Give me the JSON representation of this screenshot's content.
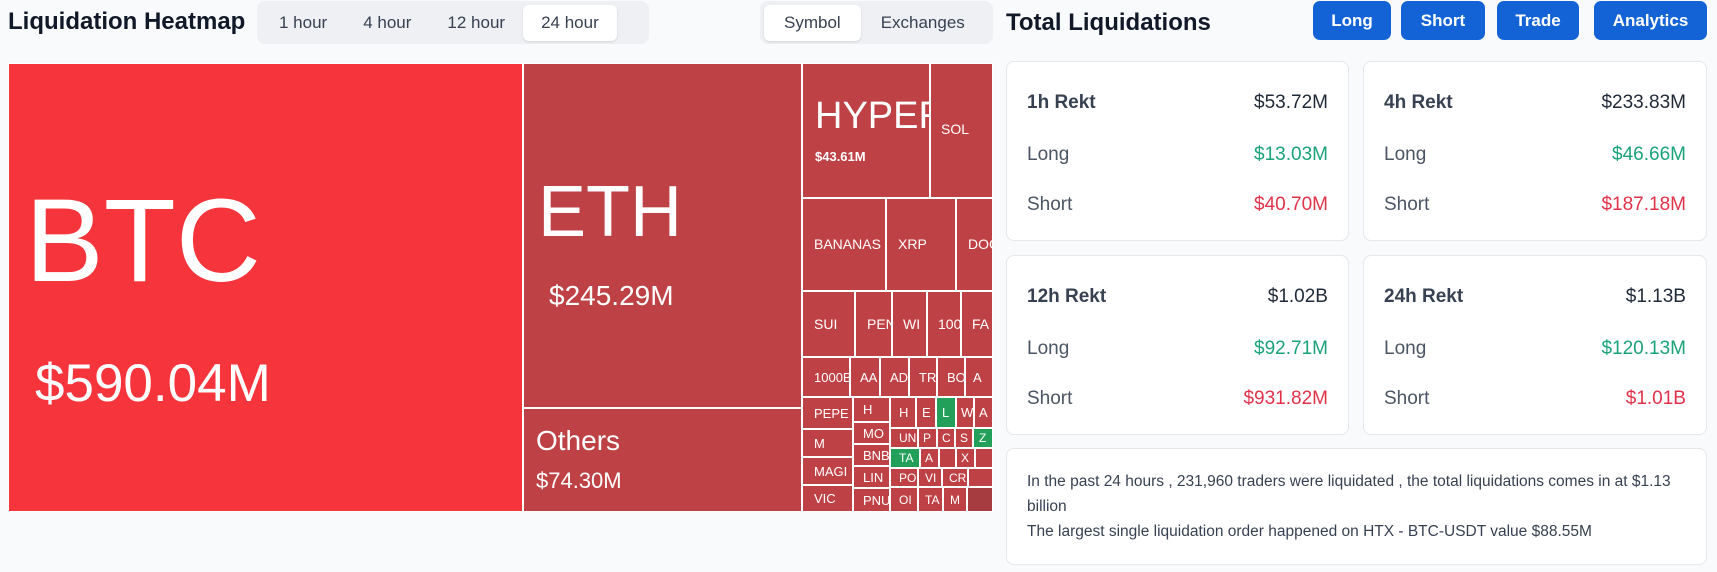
{
  "heatmap": {
    "title": "Liquidation Heatmap",
    "time_options": [
      "1 hour",
      "4 hour",
      "12 hour",
      "24 hour"
    ],
    "time_selected": "24 hour",
    "view_options": [
      "Symbol",
      "Exchanges"
    ],
    "view_selected": "Symbol",
    "tiles": {
      "btc": {
        "symbol": "BTC",
        "value": "$590.04M"
      },
      "eth": {
        "symbol": "ETH",
        "value": "$245.29M"
      },
      "others": {
        "symbol": "Others",
        "value": "$74.30M"
      },
      "hyper": {
        "symbol": "HYPER",
        "value": "$43.61M"
      },
      "sol": {
        "symbol": "SOL"
      },
      "bananas": {
        "symbol": "BANANAS"
      },
      "xrp": {
        "symbol": "XRP"
      },
      "doge": {
        "symbol": "DOG"
      },
      "sui": {
        "symbol": "SUI"
      },
      "pen": {
        "symbol": "PEN"
      },
      "wi": {
        "symbol": "WI"
      },
      "s100": {
        "symbol": "100"
      },
      "fa": {
        "symbol": "FA"
      },
      "k1000": {
        "symbol": "1000B"
      },
      "aa": {
        "symbol": "AA"
      },
      "ad": {
        "symbol": "AD"
      },
      "tr": {
        "symbol": "TR"
      },
      "bo": {
        "symbol": "BO"
      },
      "a2": {
        "symbol": "A"
      },
      "pepe": {
        "symbol": "PEPE"
      },
      "h1": {
        "symbol": "H"
      },
      "h2": {
        "symbol": "H"
      },
      "e": {
        "symbol": "E"
      },
      "l": {
        "symbol": "L"
      },
      "w": {
        "symbol": "W"
      },
      "a3": {
        "symbol": "A"
      },
      "m": {
        "symbol": "M"
      },
      "mo": {
        "symbol": "MO"
      },
      "un": {
        "symbol": "UN"
      },
      "p1": {
        "symbol": "P"
      },
      "c1": {
        "symbol": "C"
      },
      "s1": {
        "symbol": "S"
      },
      "z": {
        "symbol": "Z"
      },
      "bnb": {
        "symbol": "BNB"
      },
      "ta1": {
        "symbol": "TA"
      },
      "a4": {
        "symbol": "A"
      },
      "x": {
        "symbol": "X"
      },
      "magi": {
        "symbol": "MAGI"
      },
      "lin": {
        "symbol": "LIN"
      },
      "po": {
        "symbol": "PO"
      },
      "vi1": {
        "symbol": "VI"
      },
      "cr": {
        "symbol": "CR"
      },
      "vic": {
        "symbol": "VIC"
      },
      "pn": {
        "symbol": "PNU"
      },
      "o": {
        "symbol": "OI"
      },
      "ta2": {
        "symbol": "TA"
      },
      "m2": {
        "symbol": "M"
      }
    }
  },
  "totals": {
    "title": "Total Liquidations",
    "buttons": [
      "Long",
      "Short",
      "Trade",
      "Analytics"
    ],
    "cards": [
      {
        "label": "1h Rekt",
        "total": "$53.72M",
        "long_label": "Long",
        "long": "$13.03M",
        "short_label": "Short",
        "short": "$40.70M"
      },
      {
        "label": "4h Rekt",
        "total": "$233.83M",
        "long_label": "Long",
        "long": "$46.66M",
        "short_label": "Short",
        "short": "$187.18M"
      },
      {
        "label": "12h Rekt",
        "total": "$1.02B",
        "long_label": "Long",
        "long": "$92.71M",
        "short_label": "Short",
        "short": "$931.82M"
      },
      {
        "label": "24h Rekt",
        "total": "$1.13B",
        "long_label": "Long",
        "long": "$120.13M",
        "short_label": "Short",
        "short": "$1.01B"
      }
    ],
    "summary_line1": "In the past 24 hours , 231,960 traders were liquidated , the total liquidations comes in at $1.13 billion",
    "summary_line2": "The largest single liquidation order happened on HTX - BTC-USDT value $88.55M"
  },
  "colors": {
    "accent": "#1463d6",
    "long": "#1aa37a",
    "short": "#e0334a",
    "tile_primary": "#f5353b",
    "tile_secondary": "#bd4145",
    "tile_positive": "#22a05a"
  }
}
